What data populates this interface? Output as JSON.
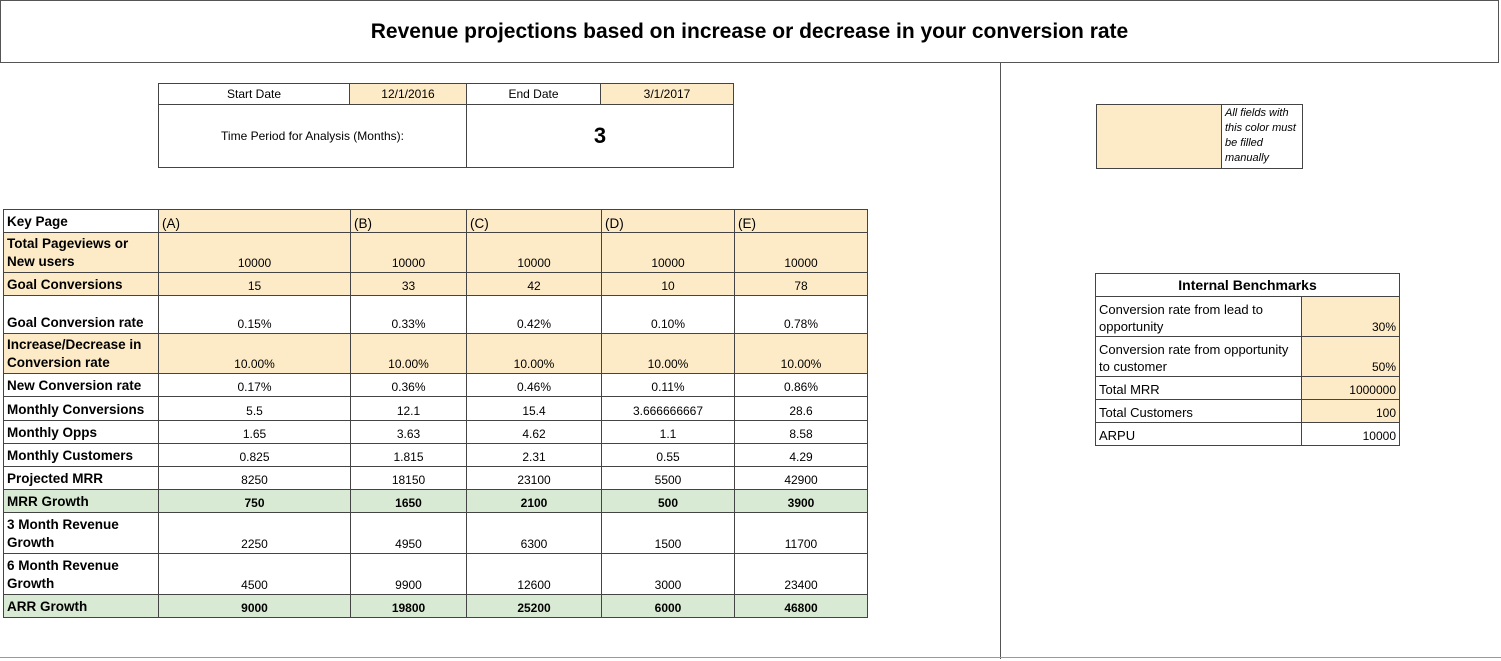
{
  "title": "Revenue projections based on increase or decrease in your conversion rate",
  "dates": {
    "start_label": "Start Date",
    "start_value": "12/1/2016",
    "end_label": "End Date",
    "end_value": "3/1/2017",
    "period_label": "Time Period for Analysis (Months):",
    "period_value": "3"
  },
  "legend": {
    "note": "All fields with this color must be filled manually"
  },
  "colors": {
    "input_fill": "#fdebc7",
    "highlight_fill": "#d8ead3"
  },
  "main_table": {
    "key_label": "Key Page",
    "columns": [
      "(A)",
      "(B)",
      "(C)",
      "(D)",
      "(E)"
    ],
    "rows": [
      {
        "label": "Total Pageviews or New users",
        "values": [
          "10000",
          "10000",
          "10000",
          "10000",
          "10000"
        ]
      },
      {
        "label": "Goal Conversions",
        "values": [
          "15",
          "33",
          "42",
          "10",
          "78"
        ]
      },
      {
        "label": "Goal Conversion rate",
        "values": [
          "0.15%",
          "0.33%",
          "0.42%",
          "0.10%",
          "0.78%"
        ]
      },
      {
        "label": "Increase/Decrease in Conversion rate",
        "values": [
          "10.00%",
          "10.00%",
          "10.00%",
          "10.00%",
          "10.00%"
        ]
      },
      {
        "label": "New Conversion rate",
        "values": [
          "0.17%",
          "0.36%",
          "0.46%",
          "0.11%",
          "0.86%"
        ]
      },
      {
        "label": "Monthly Conversions",
        "values": [
          "5.5",
          "12.1",
          "15.4",
          "3.666666667",
          "28.6"
        ]
      },
      {
        "label": "Monthly Opps",
        "values": [
          "1.65",
          "3.63",
          "4.62",
          "1.1",
          "8.58"
        ]
      },
      {
        "label": "Monthly Customers",
        "values": [
          "0.825",
          "1.815",
          "2.31",
          "0.55",
          "4.29"
        ]
      },
      {
        "label": "Projected MRR",
        "values": [
          "8250",
          "18150",
          "23100",
          "5500",
          "42900"
        ]
      },
      {
        "label": "MRR Growth",
        "values": [
          "750",
          "1650",
          "2100",
          "500",
          "3900"
        ]
      },
      {
        "label": "3 Month Revenue Growth",
        "values": [
          "2250",
          "4950",
          "6300",
          "1500",
          "11700"
        ]
      },
      {
        "label": "6 Month Revenue Growth",
        "values": [
          "4500",
          "9900",
          "12600",
          "3000",
          "23400"
        ]
      },
      {
        "label": "ARR Growth",
        "values": [
          "9000",
          "19800",
          "25200",
          "6000",
          "46800"
        ]
      }
    ]
  },
  "benchmarks": {
    "title": "Internal Benchmarks",
    "rows": [
      {
        "label": "Conversion rate from lead to opportunity",
        "value": "30%"
      },
      {
        "label": "Conversion rate from opportunity to customer",
        "value": "50%"
      },
      {
        "label": "Total MRR",
        "value": "1000000"
      },
      {
        "label": "Total Customers",
        "value": "100"
      },
      {
        "label": "ARPU",
        "value": "10000"
      }
    ]
  }
}
